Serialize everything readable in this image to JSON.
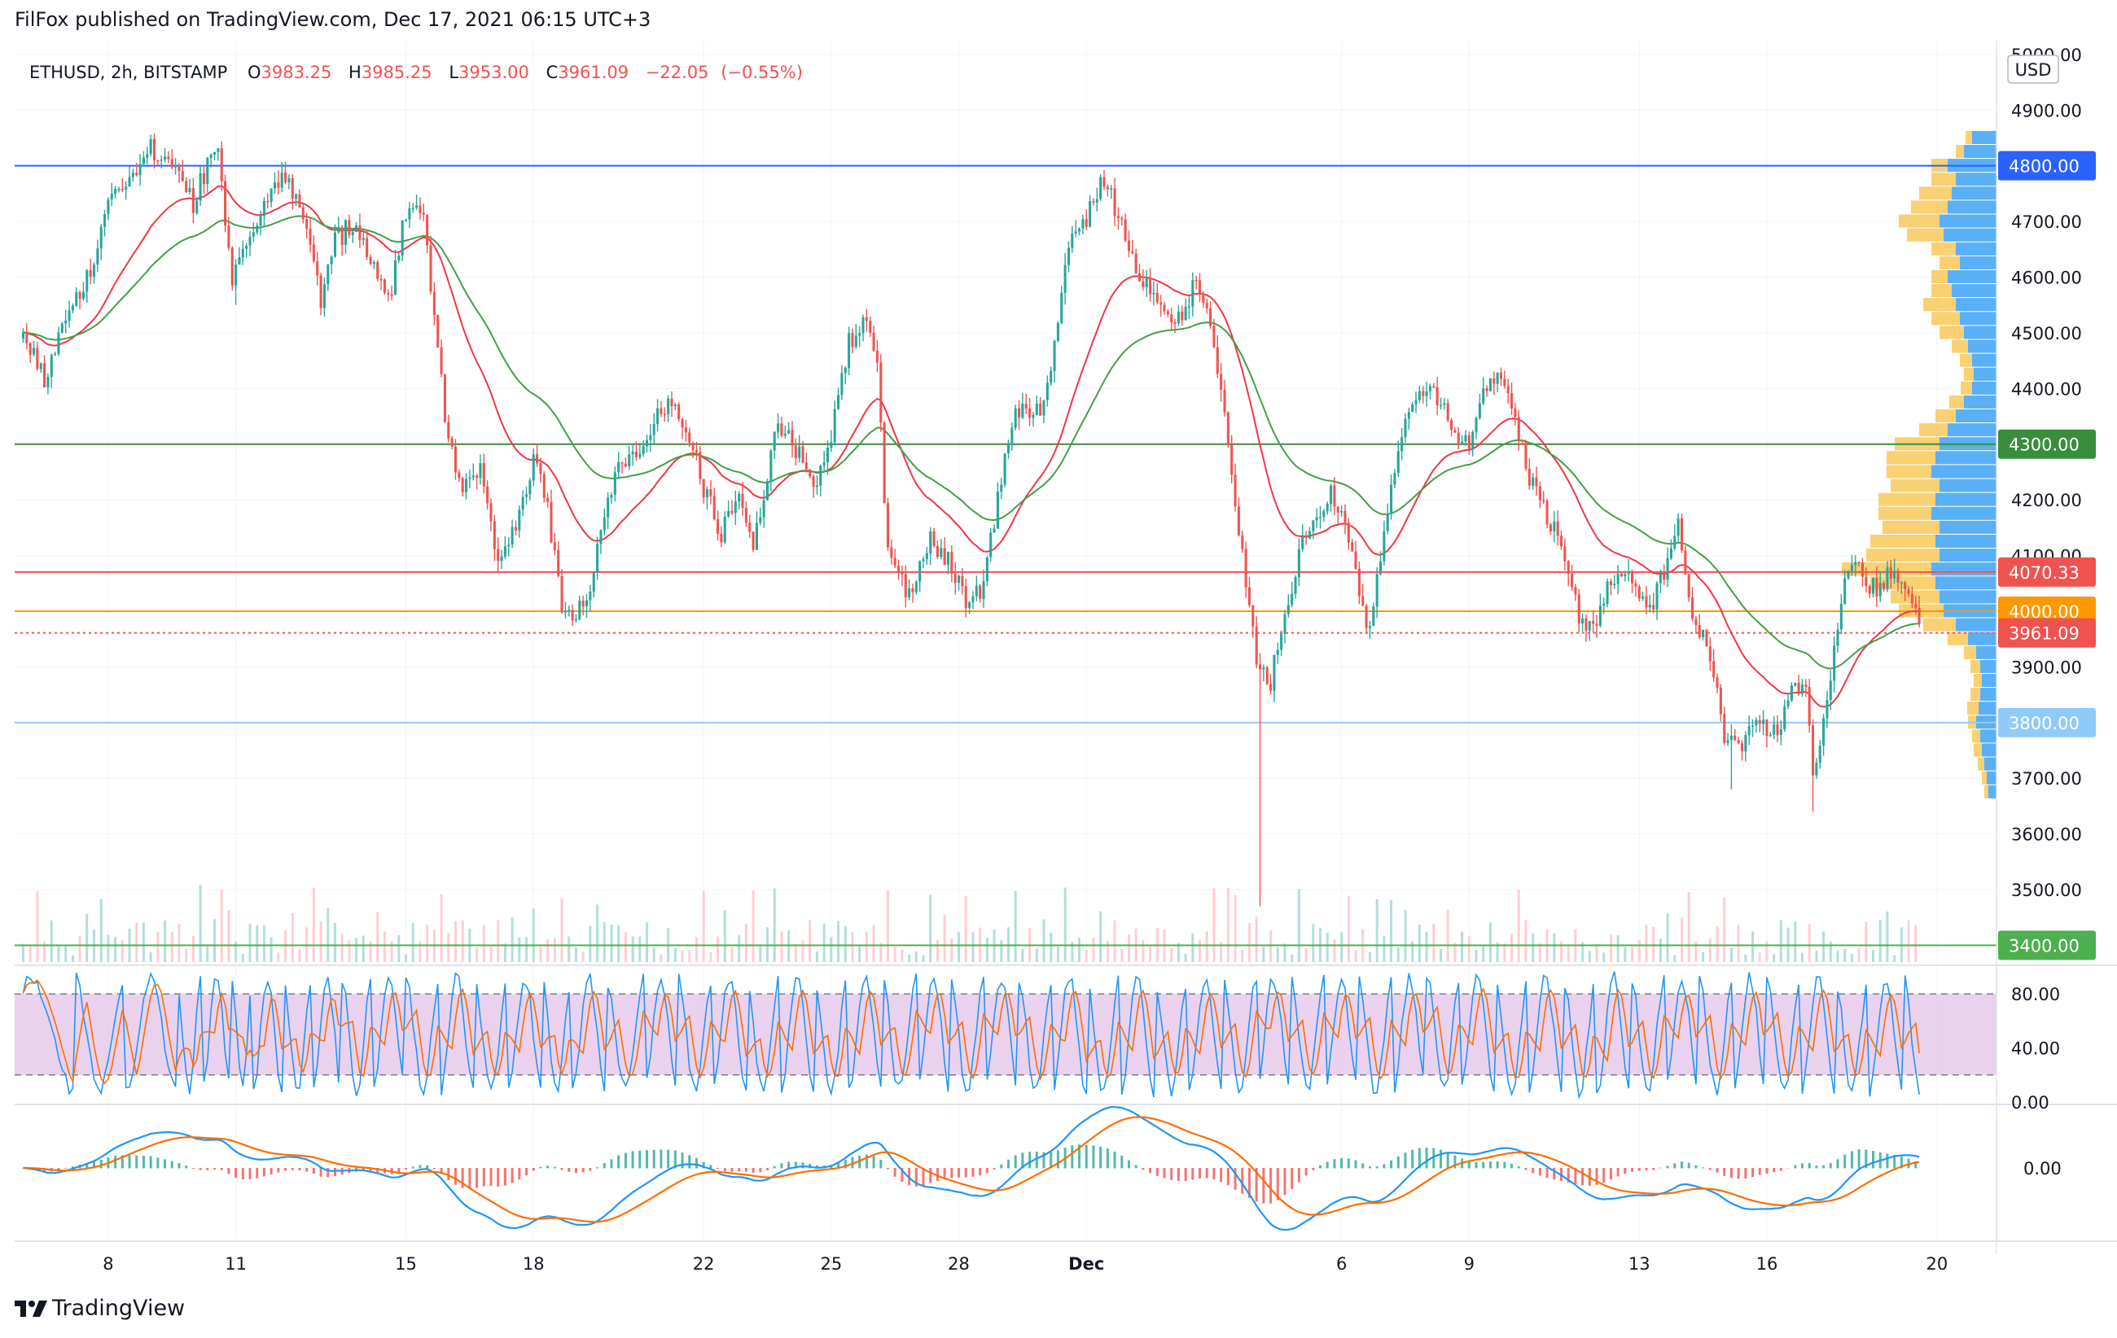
{
  "header": {
    "publisher": "FilFox published on TradingView.com, Dec 17, 2021 06:15 UTC+3"
  },
  "footer": {
    "brand": "TradingView"
  },
  "colors": {
    "up": "#26a69a",
    "down": "#ef5350",
    "ema_red": "#f23645",
    "ema_green": "#43a047",
    "stoch_k": "#2196f3",
    "stoch_d": "#ff6d00",
    "stoch_band": "#e1bee7",
    "vp_up": "#2196f3",
    "vp_down": "#f7c244",
    "grid": "#f0f3fa"
  },
  "chart_data": {
    "type": "candlestick",
    "symbol": "ETHUSD",
    "interval": "2h",
    "exchange": "BITSTAMP",
    "ohlc": {
      "o": "3983.25",
      "h": "3985.25",
      "l": "3953.00",
      "c": "3961.09",
      "chg": "−22.05",
      "chg_pct": "(−0.55%)"
    },
    "currency": "USD",
    "y_ticks": [
      "3400.00",
      "3500.00",
      "3600.00",
      "3700.00",
      "3800.00",
      "3900.00",
      "4000.00",
      "4100.00",
      "4200.00",
      "4300.00",
      "4400.00",
      "4500.00",
      "4600.00",
      "4700.00",
      "4800.00",
      "4900.00",
      "5000.00"
    ],
    "ylim": [
      3370,
      5010
    ],
    "x_ticks": [
      {
        "label": "8",
        "day": 8
      },
      {
        "label": "11",
        "day": 11
      },
      {
        "label": "15",
        "day": 15
      },
      {
        "label": "18",
        "day": 18
      },
      {
        "label": "22",
        "day": 22
      },
      {
        "label": "25",
        "day": 25
      },
      {
        "label": "28",
        "day": 28
      },
      {
        "label": "Dec",
        "day": 31
      },
      {
        "label": "6",
        "day": 37
      },
      {
        "label": "9",
        "day": 40
      },
      {
        "label": "13",
        "day": 44
      },
      {
        "label": "16",
        "day": 47
      },
      {
        "label": "20",
        "day": 51
      }
    ],
    "price_path": [
      [
        6.0,
        4490
      ],
      [
        6.5,
        4420
      ],
      [
        7.0,
        4520
      ],
      [
        7.5,
        4600
      ],
      [
        8.0,
        4720
      ],
      [
        8.5,
        4780
      ],
      [
        9.0,
        4830
      ],
      [
        9.5,
        4800
      ],
      [
        10.0,
        4730
      ],
      [
        10.4,
        4820
      ],
      [
        10.6,
        4820
      ],
      [
        10.9,
        4600
      ],
      [
        11.3,
        4650
      ],
      [
        11.8,
        4760
      ],
      [
        12.2,
        4790
      ],
      [
        12.6,
        4700
      ],
      [
        13.0,
        4560
      ],
      [
        13.3,
        4660
      ],
      [
        13.8,
        4700
      ],
      [
        14.2,
        4620
      ],
      [
        14.6,
        4560
      ],
      [
        15.0,
        4720
      ],
      [
        15.4,
        4720
      ],
      [
        15.6,
        4560
      ],
      [
        16.0,
        4300
      ],
      [
        16.4,
        4220
      ],
      [
        16.8,
        4250
      ],
      [
        17.2,
        4080
      ],
      [
        17.6,
        4150
      ],
      [
        18.0,
        4280
      ],
      [
        18.3,
        4200
      ],
      [
        18.7,
        4000
      ],
      [
        19.2,
        4000
      ],
      [
        19.5,
        4120
      ],
      [
        20.0,
        4260
      ],
      [
        20.4,
        4290
      ],
      [
        20.8,
        4330
      ],
      [
        21.2,
        4390
      ],
      [
        21.6,
        4330
      ],
      [
        22.0,
        4220
      ],
      [
        22.4,
        4140
      ],
      [
        22.8,
        4220
      ],
      [
        23.2,
        4120
      ],
      [
        23.7,
        4330
      ],
      [
        24.2,
        4290
      ],
      [
        24.6,
        4230
      ],
      [
        25.0,
        4320
      ],
      [
        25.4,
        4480
      ],
      [
        25.8,
        4530
      ],
      [
        26.1,
        4460
      ],
      [
        26.3,
        4100
      ],
      [
        26.8,
        4030
      ],
      [
        27.3,
        4130
      ],
      [
        27.8,
        4090
      ],
      [
        28.2,
        4010
      ],
      [
        28.6,
        4050
      ],
      [
        28.8,
        4150
      ],
      [
        29.3,
        4360
      ],
      [
        29.7,
        4360
      ],
      [
        30.0,
        4360
      ],
      [
        30.3,
        4520
      ],
      [
        30.6,
        4650
      ],
      [
        31.0,
        4710
      ],
      [
        31.4,
        4780
      ],
      [
        31.8,
        4700
      ],
      [
        32.2,
        4600
      ],
      [
        32.6,
        4560
      ],
      [
        33.1,
        4520
      ],
      [
        33.6,
        4590
      ],
      [
        33.9,
        4520
      ],
      [
        34.3,
        4330
      ],
      [
        34.6,
        4140
      ],
      [
        35.0,
        3920
      ],
      [
        35.3,
        3860
      ],
      [
        35.6,
        3980
      ],
      [
        36.0,
        4100
      ],
      [
        36.4,
        4180
      ],
      [
        36.8,
        4210
      ],
      [
        37.2,
        4120
      ],
      [
        37.6,
        3960
      ],
      [
        38.0,
        4140
      ],
      [
        38.4,
        4310
      ],
      [
        38.8,
        4380
      ],
      [
        39.2,
        4390
      ],
      [
        39.6,
        4330
      ],
      [
        40.0,
        4290
      ],
      [
        40.4,
        4400
      ],
      [
        40.8,
        4420
      ],
      [
        41.1,
        4340
      ],
      [
        41.4,
        4240
      ],
      [
        41.8,
        4170
      ],
      [
        42.2,
        4120
      ],
      [
        42.6,
        3990
      ],
      [
        43.0,
        3970
      ],
      [
        43.3,
        4050
      ],
      [
        43.8,
        4060
      ],
      [
        44.2,
        4000
      ],
      [
        44.5,
        4050
      ],
      [
        44.9,
        4160
      ],
      [
        45.2,
        3990
      ],
      [
        45.6,
        3950
      ],
      [
        46.0,
        3780
      ],
      [
        46.4,
        3760
      ],
      [
        46.8,
        3800
      ],
      [
        47.2,
        3780
      ],
      [
        47.7,
        3870
      ],
      [
        47.9,
        3870
      ],
      [
        48.1,
        3680
      ],
      [
        48.3,
        3790
      ],
      [
        48.6,
        3930
      ],
      [
        48.8,
        4060
      ],
      [
        49.1,
        4090
      ],
      [
        49.5,
        4040
      ],
      [
        49.9,
        4070
      ],
      [
        50.3,
        4050
      ],
      [
        50.6,
        3961
      ]
    ],
    "horizontal_levels": [
      {
        "price": 4800,
        "label": "4800.00",
        "color": "#2962ff",
        "style": "solid"
      },
      {
        "price": 4300,
        "label": "4300.00",
        "color": "#388e3c",
        "style": "solid"
      },
      {
        "price": 4070.33,
        "label": "4070.33",
        "color": "#ef5350",
        "style": "solid"
      },
      {
        "price": 4000,
        "label": "4000.00",
        "color": "#ff9800",
        "style": "solid"
      },
      {
        "price": 3961.09,
        "label": "3961.09",
        "color": "#ef5350",
        "style": "dotted"
      },
      {
        "price": 3800,
        "label": "3800.00",
        "color": "#90caf9",
        "style": "solid"
      },
      {
        "price": 3400,
        "label": "3400.00",
        "color": "#4caf50",
        "style": "solid"
      }
    ],
    "stoch": {
      "y_ticks": [
        "0.00",
        "40.00",
        "80.00"
      ],
      "upper_band": 80,
      "lower_band": 20,
      "swing_days": [
        7.2,
        8.4,
        9.6,
        10.2,
        10.9,
        11.4,
        12.1,
        12.8,
        13.5,
        14.2,
        15.0,
        15.8,
        16.6,
        17.4,
        18.2,
        18.9,
        19.7,
        20.6,
        21.4,
        22.2,
        23.0,
        23.8,
        24.6,
        25.4,
        26.2,
        27.0,
        27.8,
        28.6,
        29.4,
        30.2,
        31.0,
        31.8,
        32.6,
        33.4,
        34.2,
        35.0,
        35.8,
        36.6,
        37.4,
        38.2,
        39.0,
        39.8,
        40.6,
        41.4,
        42.2,
        43.0,
        43.8,
        44.6,
        45.4,
        46.2,
        47.0,
        47.8,
        48.6,
        49.4,
        50.2
      ],
      "current": 10
    },
    "macd": {
      "y_ticks": [
        "0.00"
      ],
      "zero_label": "0.00"
    },
    "volume_profile": {
      "levels": [
        [
          4850,
          30,
          8
        ],
        [
          4825,
          40,
          10
        ],
        [
          4800,
          60,
          20
        ],
        [
          4775,
          50,
          30
        ],
        [
          4750,
          55,
          40
        ],
        [
          4725,
          60,
          45
        ],
        [
          4700,
          70,
          50
        ],
        [
          4675,
          65,
          45
        ],
        [
          4650,
          50,
          30
        ],
        [
          4625,
          45,
          25
        ],
        [
          4600,
          60,
          20
        ],
        [
          4575,
          55,
          25
        ],
        [
          4550,
          50,
          40
        ],
        [
          4525,
          45,
          35
        ],
        [
          4500,
          40,
          30
        ],
        [
          4475,
          35,
          20
        ],
        [
          4450,
          30,
          15
        ],
        [
          4425,
          28,
          12
        ],
        [
          4400,
          30,
          14
        ],
        [
          4375,
          40,
          18
        ],
        [
          4350,
          50,
          25
        ],
        [
          4325,
          60,
          35
        ],
        [
          4300,
          70,
          55
        ],
        [
          4275,
          75,
          60
        ],
        [
          4250,
          80,
          55
        ],
        [
          4225,
          70,
          60
        ],
        [
          4200,
          75,
          70
        ],
        [
          4175,
          80,
          65
        ],
        [
          4150,
          70,
          70
        ],
        [
          4125,
          75,
          80
        ],
        [
          4100,
          70,
          90
        ],
        [
          4075,
          80,
          110
        ],
        [
          4050,
          75,
          80
        ],
        [
          4025,
          70,
          60
        ],
        [
          4000,
          65,
          55
        ],
        [
          3975,
          50,
          40
        ],
        [
          3950,
          35,
          25
        ],
        [
          3925,
          25,
          15
        ],
        [
          3900,
          20,
          12
        ],
        [
          3875,
          18,
          10
        ],
        [
          3850,
          20,
          12
        ],
        [
          3825,
          22,
          14
        ],
        [
          3800,
          25,
          10
        ],
        [
          3775,
          20,
          10
        ],
        [
          3750,
          18,
          10
        ],
        [
          3725,
          15,
          8
        ],
        [
          3700,
          12,
          6
        ],
        [
          3675,
          10,
          5
        ]
      ]
    }
  }
}
